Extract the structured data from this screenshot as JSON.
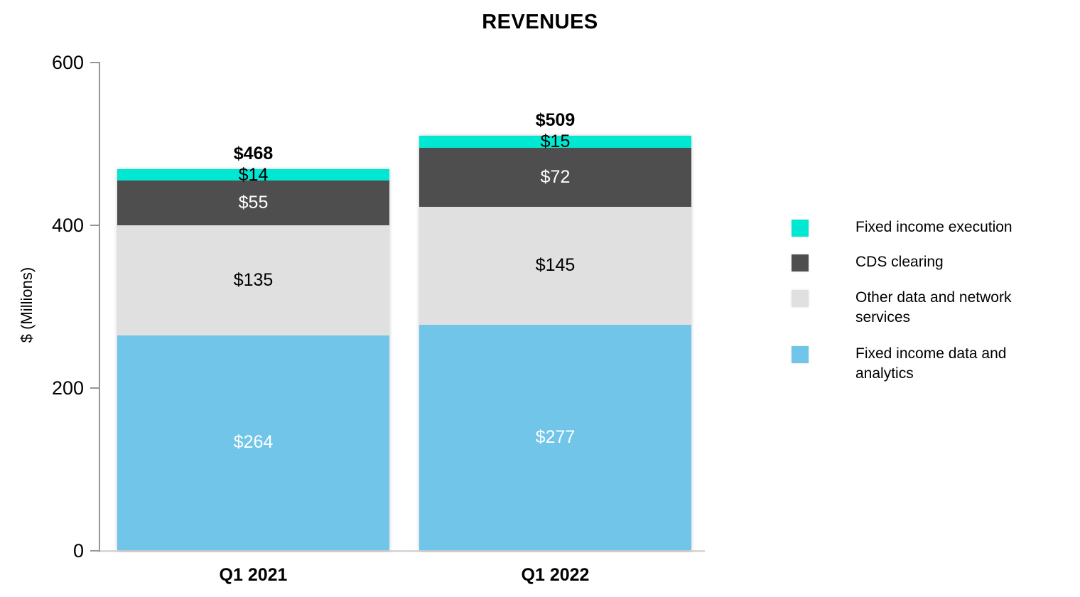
{
  "chart_data": {
    "type": "bar",
    "stacked": true,
    "title": "REVENUES",
    "ylabel": "$ (Millions)",
    "xlabel": "",
    "ylim": [
      0,
      600
    ],
    "yticks": [
      600,
      400,
      200,
      0
    ],
    "grid": false,
    "legend_position": "right",
    "categories": [
      "Q1 2021",
      "Q1 2022"
    ],
    "series": [
      {
        "name": "Fixed income data and analytics",
        "color": "#70C5E8",
        "text_color": "#FFFFFF",
        "values": [
          264,
          277
        ]
      },
      {
        "name": "Other data and network services",
        "color": "#E0E0E0",
        "text_color": "#000000",
        "values": [
          135,
          145
        ]
      },
      {
        "name": "CDS clearing",
        "color": "#4E4E4E",
        "text_color": "#FFFFFF",
        "values": [
          55,
          72
        ]
      },
      {
        "name": "Fixed income execution",
        "color": "#00E7D2",
        "text_color": "#000000",
        "values": [
          14,
          15
        ]
      }
    ],
    "totals": [
      468,
      509
    ],
    "value_prefix": "$",
    "axis_colors": {
      "y_axis_line": "#969696",
      "x_axis_line": "#D9D9D9"
    }
  }
}
